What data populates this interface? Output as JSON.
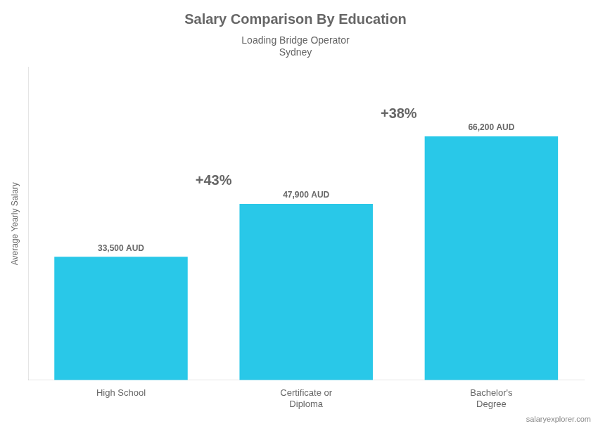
{
  "chart_data": {
    "type": "bar",
    "title": "Salary Comparison By Education",
    "subtitle": "Loading Bridge Operator",
    "city": "Sydney",
    "source": "salaryexplorer.com",
    "y_label": "Average Yearly Salary",
    "categories": [
      "High School",
      "Certificate or\nDiploma",
      "Bachelor's\nDegree"
    ],
    "values": [
      33500,
      47900,
      66200
    ],
    "value_labels": [
      "33,500 AUD",
      "47,900 AUD",
      "66,200 AUD"
    ],
    "data_labels": true,
    "annotations": [
      "+43%",
      "+38%"
    ],
    "color": "#29c8e8",
    "ylim": [
      0,
      85000
    ],
    "tick_labels": "x",
    "grid": false
  }
}
